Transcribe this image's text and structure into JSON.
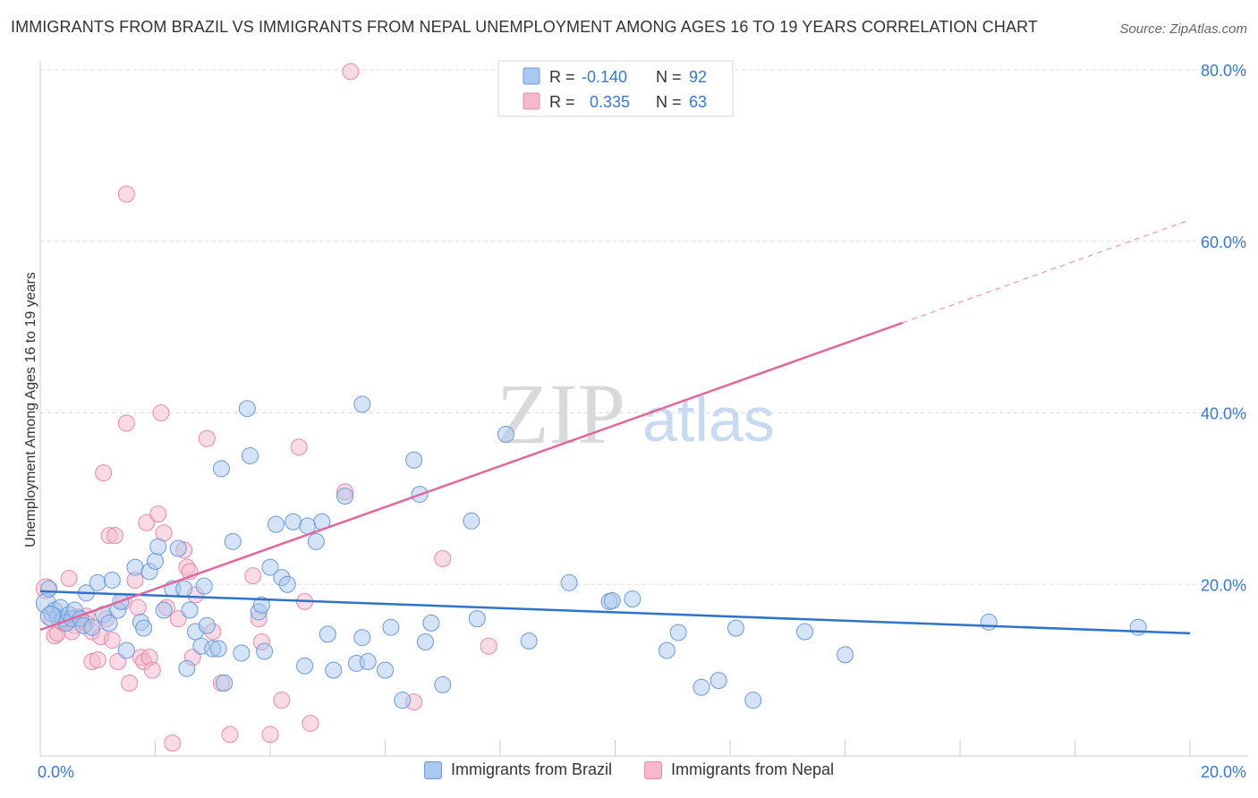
{
  "header": {
    "title": "IMMIGRANTS FROM BRAZIL VS IMMIGRANTS FROM NEPAL UNEMPLOYMENT AMONG AGES 16 TO 19 YEARS CORRELATION CHART",
    "source": "Source: ZipAtlas.com"
  },
  "watermark": {
    "zip": "ZIP",
    "atlas": "atlas"
  },
  "stats": {
    "brazil": {
      "r_label": "R =",
      "r_value": "-0.140",
      "n_label": "N =",
      "n_value": "92"
    },
    "nepal": {
      "r_label": "R =",
      "r_value": "0.335",
      "n_label": "N =",
      "n_value": "63"
    }
  },
  "colors": {
    "brazil_fill": "#aac8f0",
    "brazil_stroke": "#6a9ad8",
    "brazil_line": "#2f73c9",
    "nepal_fill": "#f6b8cc",
    "nepal_stroke": "#e88aa8",
    "nepal_line": "#e2679a",
    "accent_text": "#3a78c9"
  },
  "chart_data": {
    "type": "scatter",
    "title": "IMMIGRANTS FROM BRAZIL VS IMMIGRANTS FROM NEPAL UNEMPLOYMENT AMONG AGES 16 TO 19 YEARS CORRELATION CHART",
    "xlabel": "",
    "ylabel": "Unemployment Among Ages 16 to 19 years",
    "xlim": [
      0,
      20
    ],
    "ylim": [
      0,
      80
    ],
    "x_tick_labels": [
      "0.0%",
      "20.0%"
    ],
    "y_tick_labels": [
      "20.0%",
      "40.0%",
      "60.0%",
      "80.0%"
    ],
    "y_tick_values": [
      20,
      40,
      60,
      80
    ],
    "grid": true,
    "legend_position": "bottom",
    "series": [
      {
        "name": "Immigrants from Brazil",
        "trend": {
          "x": [
            0,
            20
          ],
          "y": [
            19.2,
            14.3
          ],
          "dashed_to": null
        },
        "points": [
          [
            0.1,
            17.8
          ],
          [
            0.15,
            19.5
          ],
          [
            0.2,
            16.6
          ],
          [
            0.25,
            17.0
          ],
          [
            0.3,
            16.2
          ],
          [
            0.35,
            17.3
          ],
          [
            0.4,
            16.0
          ],
          [
            0.45,
            15.5
          ],
          [
            0.5,
            16.5
          ],
          [
            0.55,
            16.0
          ],
          [
            0.6,
            17.0
          ],
          [
            0.7,
            16.0
          ],
          [
            0.75,
            15.2
          ],
          [
            0.8,
            19.0
          ],
          [
            0.9,
            15.0
          ],
          [
            1.0,
            20.2
          ],
          [
            1.1,
            16.5
          ],
          [
            1.2,
            15.5
          ],
          [
            1.25,
            20.5
          ],
          [
            1.35,
            17.0
          ],
          [
            1.4,
            18.0
          ],
          [
            1.5,
            12.3
          ],
          [
            1.65,
            22.0
          ],
          [
            1.75,
            15.6
          ],
          [
            1.8,
            14.9
          ],
          [
            1.9,
            21.5
          ],
          [
            2.0,
            22.7
          ],
          [
            2.05,
            24.4
          ],
          [
            2.15,
            17.0
          ],
          [
            2.3,
            19.5
          ],
          [
            2.4,
            24.2
          ],
          [
            2.5,
            19.5
          ],
          [
            2.55,
            10.2
          ],
          [
            2.6,
            17.0
          ],
          [
            2.7,
            14.5
          ],
          [
            2.8,
            12.8
          ],
          [
            2.85,
            19.8
          ],
          [
            2.9,
            15.2
          ],
          [
            3.0,
            12.5
          ],
          [
            3.1,
            12.5
          ],
          [
            3.2,
            8.5
          ],
          [
            3.15,
            33.5
          ],
          [
            3.35,
            25.0
          ],
          [
            3.5,
            12.0
          ],
          [
            3.6,
            40.5
          ],
          [
            3.65,
            35.0
          ],
          [
            3.8,
            16.8
          ],
          [
            3.85,
            17.6
          ],
          [
            3.9,
            12.2
          ],
          [
            4.0,
            22.0
          ],
          [
            4.1,
            27.0
          ],
          [
            4.2,
            20.8
          ],
          [
            4.3,
            20.0
          ],
          [
            4.4,
            27.3
          ],
          [
            4.6,
            10.5
          ],
          [
            4.65,
            26.8
          ],
          [
            4.8,
            25.0
          ],
          [
            4.9,
            27.3
          ],
          [
            5.0,
            14.2
          ],
          [
            5.1,
            10.0
          ],
          [
            5.3,
            30.3
          ],
          [
            5.5,
            10.8
          ],
          [
            5.6,
            13.8
          ],
          [
            5.7,
            11.0
          ],
          [
            5.6,
            41.0
          ],
          [
            6.0,
            10.0
          ],
          [
            6.1,
            15.0
          ],
          [
            6.3,
            6.5
          ],
          [
            6.5,
            34.5
          ],
          [
            6.6,
            30.5
          ],
          [
            6.7,
            13.3
          ],
          [
            6.8,
            15.5
          ],
          [
            7.0,
            8.3
          ],
          [
            7.5,
            27.4
          ],
          [
            7.6,
            16.0
          ],
          [
            8.1,
            37.5
          ],
          [
            8.5,
            13.4
          ],
          [
            9.2,
            20.2
          ],
          [
            9.9,
            18.0
          ],
          [
            9.95,
            18.1
          ],
          [
            10.3,
            18.3
          ],
          [
            10.9,
            12.3
          ],
          [
            11.1,
            14.4
          ],
          [
            11.5,
            8.0
          ],
          [
            11.8,
            8.8
          ],
          [
            12.1,
            14.9
          ],
          [
            12.4,
            6.5
          ],
          [
            13.3,
            14.5
          ],
          [
            14.0,
            11.8
          ],
          [
            16.5,
            15.6
          ],
          [
            19.1,
            15.0
          ],
          [
            0.18,
            16.3
          ]
        ]
      },
      {
        "name": "Immigrants from Nepal",
        "trend": {
          "x": [
            0,
            15
          ],
          "y": [
            14.7,
            50.5
          ],
          "dashed_to": {
            "x": 20,
            "y": 62.5
          }
        },
        "points": [
          [
            0.1,
            19.5
          ],
          [
            0.2,
            16.0
          ],
          [
            0.25,
            14.0
          ],
          [
            0.3,
            14.3
          ],
          [
            0.4,
            15.5
          ],
          [
            0.5,
            20.7
          ],
          [
            0.6,
            15.2
          ],
          [
            0.7,
            16.0
          ],
          [
            0.8,
            15.5
          ],
          [
            0.9,
            14.5
          ],
          [
            0.9,
            11.0
          ],
          [
            1.0,
            11.2
          ],
          [
            1.05,
            13.9
          ],
          [
            1.1,
            33.0
          ],
          [
            1.2,
            25.7
          ],
          [
            1.25,
            13.5
          ],
          [
            1.3,
            25.7
          ],
          [
            1.35,
            11.0
          ],
          [
            1.45,
            18.0
          ],
          [
            1.5,
            38.8
          ],
          [
            1.5,
            65.5
          ],
          [
            1.55,
            8.5
          ],
          [
            1.65,
            20.5
          ],
          [
            1.7,
            17.3
          ],
          [
            1.75,
            11.5
          ],
          [
            1.8,
            11.0
          ],
          [
            1.85,
            27.2
          ],
          [
            1.9,
            11.5
          ],
          [
            1.95,
            10.0
          ],
          [
            2.05,
            28.2
          ],
          [
            2.1,
            40.0
          ],
          [
            2.15,
            26.0
          ],
          [
            2.2,
            17.3
          ],
          [
            2.3,
            1.5
          ],
          [
            2.4,
            16.0
          ],
          [
            2.5,
            24.0
          ],
          [
            2.55,
            22.0
          ],
          [
            2.6,
            21.5
          ],
          [
            2.65,
            11.5
          ],
          [
            2.7,
            18.8
          ],
          [
            2.9,
            37.0
          ],
          [
            3.0,
            14.5
          ],
          [
            3.15,
            8.5
          ],
          [
            3.3,
            2.5
          ],
          [
            3.7,
            21.0
          ],
          [
            3.8,
            16.0
          ],
          [
            3.85,
            13.3
          ],
          [
            4.0,
            2.5
          ],
          [
            4.2,
            6.5
          ],
          [
            4.5,
            36.0
          ],
          [
            4.6,
            18.0
          ],
          [
            4.7,
            3.8
          ],
          [
            5.3,
            30.8
          ],
          [
            5.4,
            79.8
          ],
          [
            6.5,
            6.3
          ],
          [
            7.0,
            23.0
          ],
          [
            7.8,
            12.8
          ],
          [
            11.4,
            80.0
          ],
          [
            0.55,
            14.5
          ],
          [
            0.65,
            16.2
          ],
          [
            1.15,
            16.0
          ],
          [
            0.35,
            15.8
          ],
          [
            0.8,
            16.3
          ]
        ]
      }
    ]
  },
  "legend": {
    "brazil": "Immigrants from Brazil",
    "nepal": "Immigrants from Nepal"
  }
}
